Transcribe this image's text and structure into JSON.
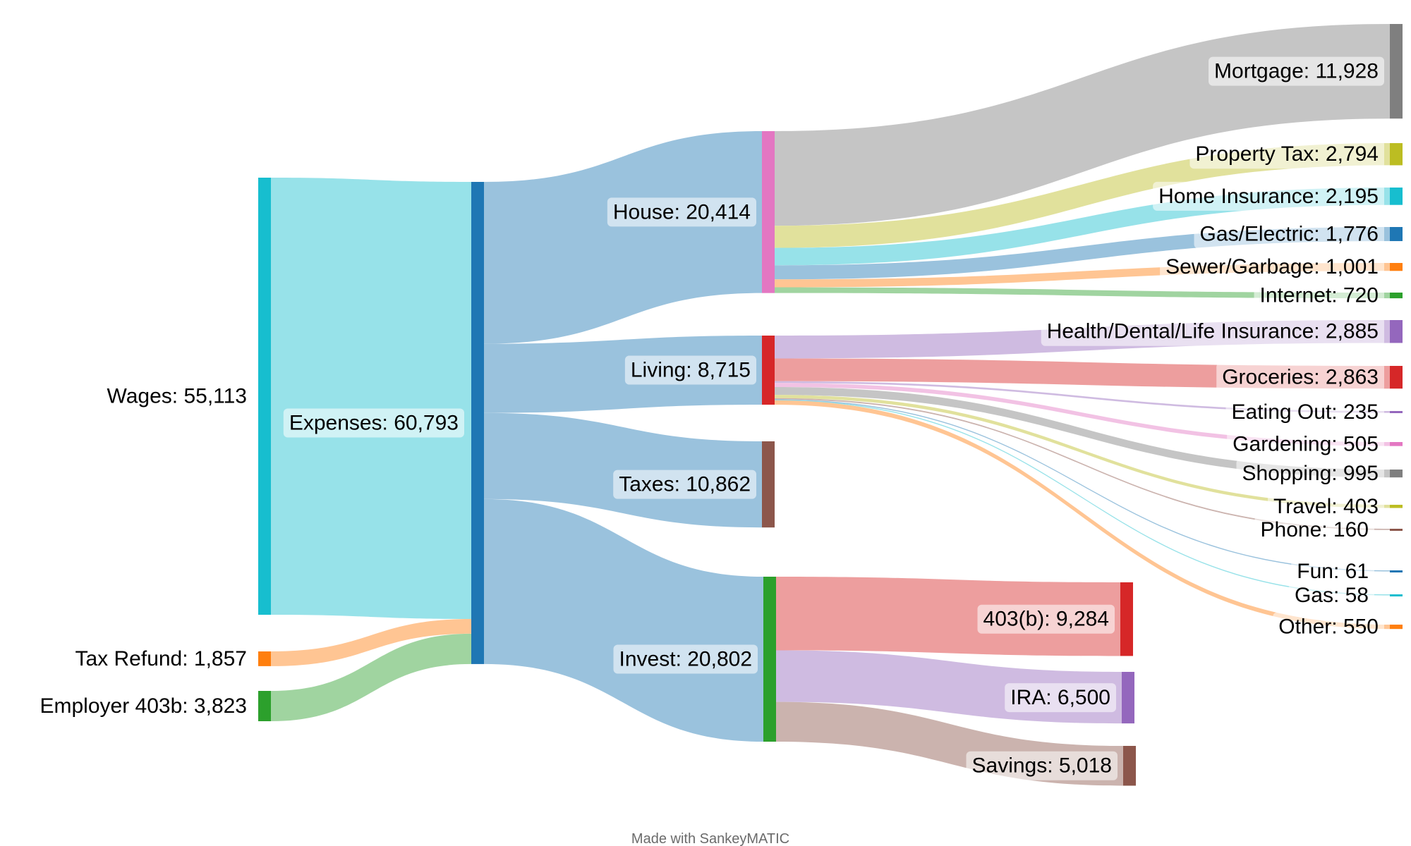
{
  "chart_data": {
    "type": "sankey",
    "credit": "Made with SankeyMATIC",
    "nodes": [
      {
        "id": "wages",
        "label": "Wages: 55,113",
        "name": "Wages",
        "value": 55113,
        "color": "#17becf",
        "stage": 0
      },
      {
        "id": "refund",
        "label": "Tax Refund: 1,857",
        "name": "Tax Refund",
        "value": 1857,
        "color": "#ff7f0e",
        "stage": 0
      },
      {
        "id": "employer",
        "label": "Employer 403b: 3,823",
        "name": "Employer 403b",
        "value": 3823,
        "color": "#2ca02c",
        "stage": 0
      },
      {
        "id": "expenses",
        "label": "Expenses: 60,793",
        "name": "Expenses",
        "value": 60793,
        "color": "#1f77b4",
        "stage": 1
      },
      {
        "id": "house",
        "label": "House: 20,414",
        "name": "House",
        "value": 20414,
        "color": "#e377c2",
        "stage": 2
      },
      {
        "id": "living",
        "label": "Living: 8,715",
        "name": "Living",
        "value": 8715,
        "color": "#d62728",
        "stage": 2
      },
      {
        "id": "taxes",
        "label": "Taxes: 10,862",
        "name": "Taxes",
        "value": 10862,
        "color": "#8c564b",
        "stage": 2
      },
      {
        "id": "invest",
        "label": "Invest: 20,802",
        "name": "Invest",
        "value": 20802,
        "color": "#2ca02c",
        "stage": 2
      },
      {
        "id": "mortgage",
        "label": "Mortgage: 11,928",
        "name": "Mortgage",
        "value": 11928,
        "color": "#7f7f7f",
        "stage": 3
      },
      {
        "id": "proptax",
        "label": "Property Tax: 2,794",
        "name": "Property Tax",
        "value": 2794,
        "color": "#bcbd22",
        "stage": 3
      },
      {
        "id": "homeins",
        "label": "Home Insurance: 2,195",
        "name": "Home Insurance",
        "value": 2195,
        "color": "#17becf",
        "stage": 3
      },
      {
        "id": "gaselec",
        "label": "Gas/Electric: 1,776",
        "name": "Gas/Electric",
        "value": 1776,
        "color": "#1f77b4",
        "stage": 3
      },
      {
        "id": "sewer",
        "label": "Sewer/Garbage: 1,001",
        "name": "Sewer/Garbage",
        "value": 1001,
        "color": "#ff7f0e",
        "stage": 3
      },
      {
        "id": "internet",
        "label": "Internet: 720",
        "name": "Internet",
        "value": 720,
        "color": "#2ca02c",
        "stage": 3
      },
      {
        "id": "health",
        "label": "Health/Dental/Life Insurance: 2,885",
        "name": "Health/Dental/Life Insurance",
        "value": 2885,
        "color": "#9467bd",
        "stage": 3
      },
      {
        "id": "groceries",
        "label": "Groceries: 2,863",
        "name": "Groceries",
        "value": 2863,
        "color": "#d62728",
        "stage": 3
      },
      {
        "id": "eating",
        "label": "Eating Out: 235",
        "name": "Eating Out",
        "value": 235,
        "color": "#9467bd",
        "stage": 3
      },
      {
        "id": "gardening",
        "label": "Gardening: 505",
        "name": "Gardening",
        "value": 505,
        "color": "#e377c2",
        "stage": 3
      },
      {
        "id": "shopping",
        "label": "Shopping: 995",
        "name": "Shopping",
        "value": 995,
        "color": "#7f7f7f",
        "stage": 3
      },
      {
        "id": "travel",
        "label": "Travel: 403",
        "name": "Travel",
        "value": 403,
        "color": "#bcbd22",
        "stage": 3
      },
      {
        "id": "phone",
        "label": "Phone: 160",
        "name": "Phone",
        "value": 160,
        "color": "#8c564b",
        "stage": 3
      },
      {
        "id": "fun",
        "label": "Fun: 61",
        "name": "Fun",
        "value": 61,
        "color": "#1f77b4",
        "stage": 3
      },
      {
        "id": "gas",
        "label": "Gas: 58",
        "name": "Gas",
        "value": 58,
        "color": "#17becf",
        "stage": 3
      },
      {
        "id": "other",
        "label": "Other: 550",
        "name": "Other",
        "value": 550,
        "color": "#ff7f0e",
        "stage": 3
      },
      {
        "id": "b403",
        "label": "403(b): 9,284",
        "name": "403(b)",
        "value": 9284,
        "color": "#d62728",
        "stage": 3
      },
      {
        "id": "ira",
        "label": "IRA: 6,500",
        "name": "IRA",
        "value": 6500,
        "color": "#9467bd",
        "stage": 3
      },
      {
        "id": "savings",
        "label": "Savings: 5,018",
        "name": "Savings",
        "value": 5018,
        "color": "#8c564b",
        "stage": 3
      }
    ],
    "links": [
      {
        "source": "wages",
        "target": "expenses",
        "value": 55113
      },
      {
        "source": "refund",
        "target": "expenses",
        "value": 1857
      },
      {
        "source": "employer",
        "target": "expenses",
        "value": 3823
      },
      {
        "source": "expenses",
        "target": "house",
        "value": 20414
      },
      {
        "source": "expenses",
        "target": "living",
        "value": 8715
      },
      {
        "source": "expenses",
        "target": "taxes",
        "value": 10862
      },
      {
        "source": "expenses",
        "target": "invest",
        "value": 20802
      },
      {
        "source": "house",
        "target": "mortgage",
        "value": 11928
      },
      {
        "source": "house",
        "target": "proptax",
        "value": 2794
      },
      {
        "source": "house",
        "target": "homeins",
        "value": 2195
      },
      {
        "source": "house",
        "target": "gaselec",
        "value": 1776
      },
      {
        "source": "house",
        "target": "sewer",
        "value": 1001
      },
      {
        "source": "house",
        "target": "internet",
        "value": 720
      },
      {
        "source": "living",
        "target": "health",
        "value": 2885
      },
      {
        "source": "living",
        "target": "groceries",
        "value": 2863
      },
      {
        "source": "living",
        "target": "eating",
        "value": 235
      },
      {
        "source": "living",
        "target": "gardening",
        "value": 505
      },
      {
        "source": "living",
        "target": "shopping",
        "value": 995
      },
      {
        "source": "living",
        "target": "travel",
        "value": 403
      },
      {
        "source": "living",
        "target": "phone",
        "value": 160
      },
      {
        "source": "living",
        "target": "fun",
        "value": 61
      },
      {
        "source": "living",
        "target": "gas",
        "value": 58
      },
      {
        "source": "living",
        "target": "other",
        "value": 550
      },
      {
        "source": "invest",
        "target": "b403",
        "value": 9284
      },
      {
        "source": "invest",
        "target": "ira",
        "value": 6500
      },
      {
        "source": "invest",
        "target": "savings",
        "value": 5018
      }
    ]
  }
}
